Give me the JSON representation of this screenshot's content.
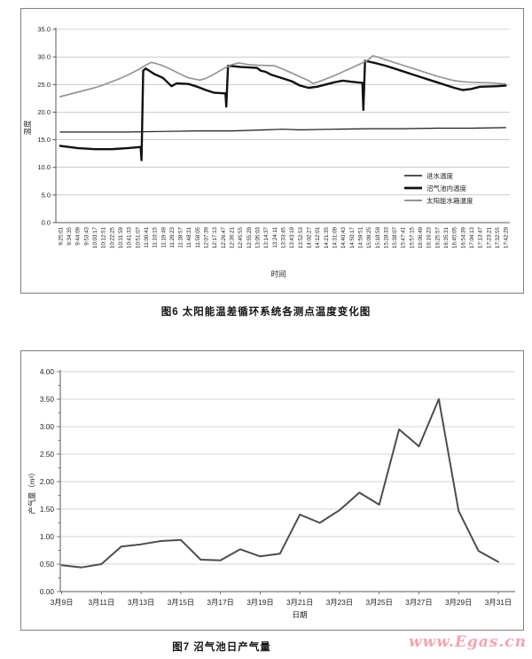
{
  "captions": {
    "fig6": "图6 太阳能温差循环系统各测点温度变化图",
    "fig7": "图7 沼气池日产气量"
  },
  "watermark": {
    "text": "www.Egas.cn",
    "color": "#f2a6b0"
  },
  "colors": {
    "frame": "#7f7f7f",
    "axis": "#595959",
    "grid": "#adadad",
    "thin_black": "#1a1a1a",
    "thick_black": "#111111",
    "gray_line": "#969696",
    "fig7_line": "#4d4d4d",
    "text": "#222222"
  },
  "chart_data": [
    {
      "type": "line",
      "title": "图6 太阳能温差循环系统各测点温度变化图",
      "xlabel": "时间",
      "ylabel": "温度",
      "ylim": [
        0,
        35
      ],
      "ytick_step": 5,
      "ytick_labels": [
        "35.0",
        "30.0",
        "25.0",
        "20.0",
        "15.0",
        "10.0",
        "5.0",
        "0.0"
      ],
      "grid": "horizontal",
      "legend": {
        "position": "inside-right",
        "entries": [
          "进水温度",
          "沼气池内温度",
          "太阳能水箱温度"
        ]
      },
      "x_categories": [
        "9:25:01",
        "9:34:35",
        "9:44:09",
        "9:53:43",
        "10:03:17",
        "10:12:51",
        "10:22:25",
        "10:31:59",
        "10:41:33",
        "10:51:07",
        "11:00:41",
        "11:10:15",
        "11:19:49",
        "11:29:23",
        "11:38:57",
        "11:48:31",
        "11:58:05",
        "12:07:39",
        "12:17:13",
        "12:26:47",
        "12:36:21",
        "12:45:55",
        "12:55:29",
        "13:05:03",
        "13:14:37",
        "13:24:11",
        "13:33:45",
        "13:43:19",
        "13:52:53",
        "14:02:27",
        "14:12:01",
        "14:21:35",
        "14:31:09",
        "14:40:43",
        "14:50:17",
        "14:59:51",
        "15:09:25",
        "15:18:59",
        "15:28:33",
        "15:38:07",
        "15:47:41",
        "15:57:15",
        "16:06:49",
        "16:16:23",
        "16:25:57",
        "16:35:31",
        "16:45:05",
        "16:54:39",
        "17:04:13",
        "17:13:47",
        "17:23:21",
        "17:32:55",
        "17:42:29"
      ],
      "series": [
        {
          "name": "进水温度",
          "color_key": "thin_black",
          "width": 1.2,
          "points": [
            [
              0,
              16.4
            ],
            [
              4,
              16.4
            ],
            [
              8,
              16.4
            ],
            [
              12,
              16.5
            ],
            [
              16,
              16.6
            ],
            [
              20,
              16.6
            ],
            [
              24,
              16.8
            ],
            [
              26,
              16.9
            ],
            [
              28,
              16.8
            ],
            [
              32,
              16.9
            ],
            [
              36,
              17.0
            ],
            [
              40,
              17.0
            ],
            [
              44,
              17.1
            ],
            [
              48,
              17.1
            ],
            [
              52,
              17.2
            ]
          ]
        },
        {
          "name": "沼气池内温度",
          "color_key": "thick_black",
          "width": 2.4,
          "points": [
            [
              0,
              13.9
            ],
            [
              2,
              13.5
            ],
            [
              4,
              13.3
            ],
            [
              6,
              13.3
            ],
            [
              8,
              13.5
            ],
            [
              9.4,
              13.7
            ],
            [
              9.5,
              11.3
            ],
            [
              9.7,
              27.5
            ],
            [
              10,
              27.9
            ],
            [
              11,
              26.9
            ],
            [
              12,
              26.2
            ],
            [
              13,
              24.7
            ],
            [
              13.6,
              25.2
            ],
            [
              15,
              25.1
            ],
            [
              16,
              24.6
            ],
            [
              17,
              24.0
            ],
            [
              18,
              23.5
            ],
            [
              19.3,
              23.4
            ],
            [
              19.4,
              21.0
            ],
            [
              19.6,
              28.4
            ],
            [
              21,
              28.2
            ],
            [
              23,
              28.0
            ],
            [
              23.4,
              27.5
            ],
            [
              24,
              27.3
            ],
            [
              24.6,
              26.8
            ],
            [
              26,
              26.1
            ],
            [
              27,
              25.6
            ],
            [
              28,
              24.8
            ],
            [
              29,
              24.4
            ],
            [
              30,
              24.6
            ],
            [
              31,
              25.0
            ],
            [
              32,
              25.4
            ],
            [
              33,
              25.7
            ],
            [
              34,
              25.5
            ],
            [
              35.3,
              25.3
            ],
            [
              35.4,
              20.4
            ],
            [
              35.6,
              29.3
            ],
            [
              37,
              28.8
            ],
            [
              38,
              28.4
            ],
            [
              39,
              27.9
            ],
            [
              40,
              27.4
            ],
            [
              41,
              26.9
            ],
            [
              42,
              26.4
            ],
            [
              43,
              25.9
            ],
            [
              44,
              25.4
            ],
            [
              45,
              24.9
            ],
            [
              46,
              24.4
            ],
            [
              47,
              24.0
            ],
            [
              48,
              24.2
            ],
            [
              49,
              24.6
            ],
            [
              51,
              24.7
            ],
            [
              52,
              24.8
            ]
          ]
        },
        {
          "name": "太阳能水箱温度",
          "color_key": "gray_line",
          "width": 1.7,
          "points": [
            [
              0,
              22.8
            ],
            [
              1,
              23.2
            ],
            [
              2,
              23.6
            ],
            [
              3,
              24.0
            ],
            [
              4,
              24.4
            ],
            [
              5,
              24.9
            ],
            [
              6,
              25.5
            ],
            [
              7,
              26.1
            ],
            [
              8,
              26.8
            ],
            [
              9,
              27.6
            ],
            [
              10,
              28.5
            ],
            [
              10.6,
              29.0
            ],
            [
              11,
              28.9
            ],
            [
              12,
              28.4
            ],
            [
              13,
              27.7
            ],
            [
              14,
              26.9
            ],
            [
              15,
              26.2
            ],
            [
              16.3,
              25.8
            ],
            [
              17,
              26.1
            ],
            [
              18,
              26.9
            ],
            [
              19,
              27.8
            ],
            [
              20,
              28.6
            ],
            [
              20.9,
              28.9
            ],
            [
              22,
              28.6
            ],
            [
              23,
              28.5
            ],
            [
              25,
              28.4
            ],
            [
              26,
              27.8
            ],
            [
              27,
              27.1
            ],
            [
              28,
              26.4
            ],
            [
              29,
              25.7
            ],
            [
              29.5,
              25.2
            ],
            [
              30,
              25.4
            ],
            [
              31,
              26.0
            ],
            [
              32,
              26.6
            ],
            [
              33,
              27.3
            ],
            [
              34,
              28.0
            ],
            [
              35,
              28.7
            ],
            [
              36,
              29.5
            ],
            [
              36.5,
              30.2
            ],
            [
              37,
              30.0
            ],
            [
              38,
              29.5
            ],
            [
              39,
              29.0
            ],
            [
              40,
              28.5
            ],
            [
              41,
              28.0
            ],
            [
              42,
              27.5
            ],
            [
              43,
              27.0
            ],
            [
              44,
              26.5
            ],
            [
              45,
              26.1
            ],
            [
              46,
              25.7
            ],
            [
              47,
              25.5
            ],
            [
              48,
              25.4
            ],
            [
              50,
              25.3
            ],
            [
              52,
              25.1
            ]
          ]
        }
      ]
    },
    {
      "type": "line",
      "title": "图7 沼气池日产气量",
      "xlabel": "日期",
      "ylabel": "产气量（m³）",
      "ylim": [
        0,
        4
      ],
      "ytick_step": 0.5,
      "ytick_labels": [
        "4.00",
        "3.50",
        "3.00",
        "2.50",
        "2.00",
        "1.50",
        "1.00",
        "0.50",
        "0.00"
      ],
      "grid": "horizontal",
      "xtick_labels": [
        "3月9日",
        "3月11日",
        "3月13日",
        "3月15日",
        "3月17日",
        "3月19日",
        "3月21日",
        "3月23日",
        "3月25日",
        "3月27日",
        "3月29日",
        "3月31日"
      ],
      "days": [
        "3月9日",
        "3月10日",
        "3月11日",
        "3月12日",
        "3月13日",
        "3月14日",
        "3月15日",
        "3月16日",
        "3月17日",
        "3月18日",
        "3月19日",
        "3月20日",
        "3月21日",
        "3月22日",
        "3月23日",
        "3月24日",
        "3月25日",
        "3月26日",
        "3月27日",
        "3月28日",
        "3月29日",
        "3月30日",
        "3月31日"
      ],
      "values": [
        0.48,
        0.44,
        0.5,
        0.82,
        0.86,
        0.92,
        0.94,
        0.58,
        0.57,
        0.77,
        0.64,
        0.69,
        1.4,
        1.25,
        1.48,
        1.8,
        1.58,
        2.95,
        2.64,
        3.5,
        1.47,
        0.74,
        0.54
      ],
      "series_name": "日产气量"
    }
  ]
}
